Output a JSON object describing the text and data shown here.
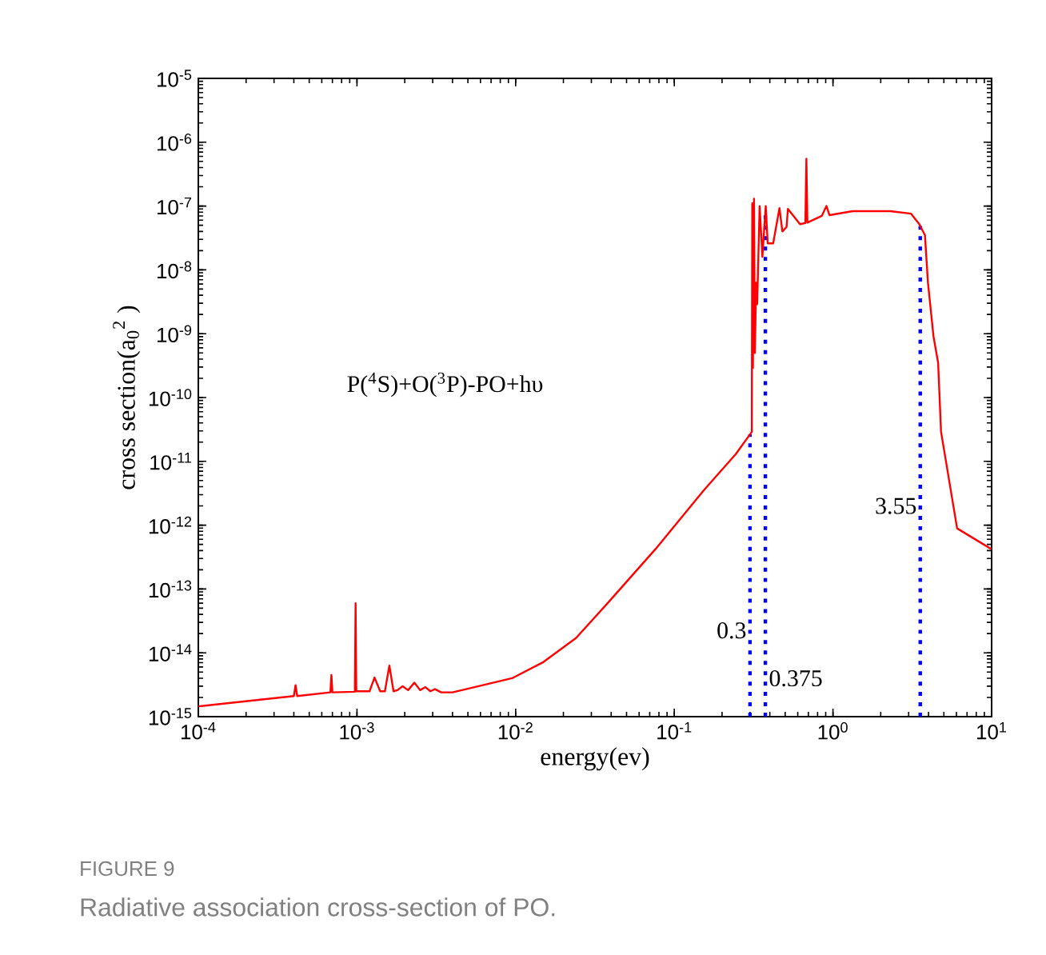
{
  "chart_data": {
    "type": "line",
    "title": "FIGURE 9",
    "subtitle": "Radiative association cross-section of PO.",
    "xlabel": "energy(ev)",
    "ylabel": "cross section(a$_{0}$$^{2}$ )",
    "log": "xy",
    "xlim": [
      0.0001,
      10
    ],
    "ylim": [
      1e-15,
      1e-05
    ],
    "xticks": [
      {
        "value": 0.0001,
        "label": "10$^{-4}$"
      },
      {
        "value": 0.001,
        "label": "10$^{-3}$"
      },
      {
        "value": 0.01,
        "label": "10$^{-2}$"
      },
      {
        "value": 0.1,
        "label": "10$^{-1}$"
      },
      {
        "value": 1,
        "label": "10$^{0}$"
      },
      {
        "value": 10,
        "label": "10$^{1}$"
      }
    ],
    "yticks": [
      {
        "value": 1e-15,
        "label": "10$^{-15}$"
      },
      {
        "value": 1e-14,
        "label": "10$^{-14}$"
      },
      {
        "value": 1e-13,
        "label": "10$^{-13}$"
      },
      {
        "value": 1e-12,
        "label": "10$^{-12}$"
      },
      {
        "value": 1e-11,
        "label": "10$^{-11}$"
      },
      {
        "value": 1e-10,
        "label": "10$^{-10}$"
      },
      {
        "value": 1e-09,
        "label": "10$^{-9}$"
      },
      {
        "value": 1e-08,
        "label": "10$^{-8}$"
      },
      {
        "value": 1e-07,
        "label": "10$^{-7}$"
      },
      {
        "value": 1e-06,
        "label": "10$^{-6}$"
      },
      {
        "value": 1e-05,
        "label": "10$^{-5}$"
      }
    ],
    "series": [
      {
        "color": "#ff0000",
        "x": [
          0.0001,
          0.0004,
          0.00041,
          0.00042,
          0.00068,
          0.00069,
          0.0007,
          0.00097,
          0.00098,
          0.00099,
          0.00105,
          0.0012,
          0.00129,
          0.0014,
          0.0015,
          0.0016,
          0.0017,
          0.0018,
          0.00194,
          0.0021,
          0.0023,
          0.0025,
          0.0027,
          0.0029,
          0.0031,
          0.0034,
          0.004,
          0.0055,
          0.0095,
          0.015,
          0.024,
          0.038,
          0.076,
          0.153,
          0.244,
          0.308,
          0.31,
          0.313,
          0.318,
          0.322,
          0.328,
          0.333,
          0.345,
          0.359,
          0.377,
          0.388,
          0.42,
          0.46,
          0.48,
          0.51,
          0.52,
          0.62,
          0.67,
          0.68,
          0.69,
          0.85,
          0.91,
          0.95,
          1.33,
          2.3,
          3.1,
          3.5,
          3.8,
          3.97,
          4.3,
          4.6,
          4.8,
          6.06,
          10
        ],
        "values": [
          1.45e-15,
          2.1e-15,
          3.1e-15,
          2.1e-15,
          2.4e-15,
          4.5e-15,
          2.4e-15,
          2.45e-15,
          6e-14,
          2.5e-15,
          2.5e-15,
          2.5e-15,
          4.1e-15,
          2.5e-15,
          2.5e-15,
          6.3e-15,
          2.5e-15,
          2.6e-15,
          3e-15,
          2.6e-15,
          3.4e-15,
          2.6e-15,
          2.9e-15,
          2.5e-15,
          2.7e-15,
          2.4e-15,
          2.4e-15,
          2.9e-15,
          4e-15,
          7.2e-15,
          1.7e-14,
          6e-14,
          4.2e-13,
          3.5e-12,
          1.3e-11,
          2.9e-11,
          1.1e-07,
          2.9e-10,
          1.3e-07,
          5e-10,
          6.3e-09,
          2.9e-09,
          1e-07,
          1.6e-08,
          1e-07,
          2.6e-08,
          2.6e-08,
          9.3e-08,
          4e-08,
          4.7e-08,
          9e-08,
          5.2e-08,
          5.4e-08,
          5.5e-07,
          5.5e-08,
          7e-08,
          1e-07,
          7.2e-08,
          8.3e-08,
          8.3e-08,
          7.6e-08,
          5.2e-08,
          3.5e-08,
          6.3e-09,
          9.1e-10,
          3.5e-10,
          2.9e-11,
          8.9e-13,
          4.2e-13
        ]
      }
    ],
    "ref_lines": [
      {
        "axis": "x",
        "value": 0.3,
        "label": "0.3",
        "color": "#0000ff",
        "line_style": "dotted"
      },
      {
        "axis": "x",
        "value": 0.375,
        "label": "0.375",
        "color": "#0000ff",
        "line_style": "dotted"
      },
      {
        "axis": "x",
        "value": 3.55,
        "label": "3.55",
        "color": "#0000ff",
        "line_style": "dotted"
      }
    ],
    "annotations": [
      "P($^{4}$S)+O($^{3}$P)-PO+hυ"
    ]
  }
}
